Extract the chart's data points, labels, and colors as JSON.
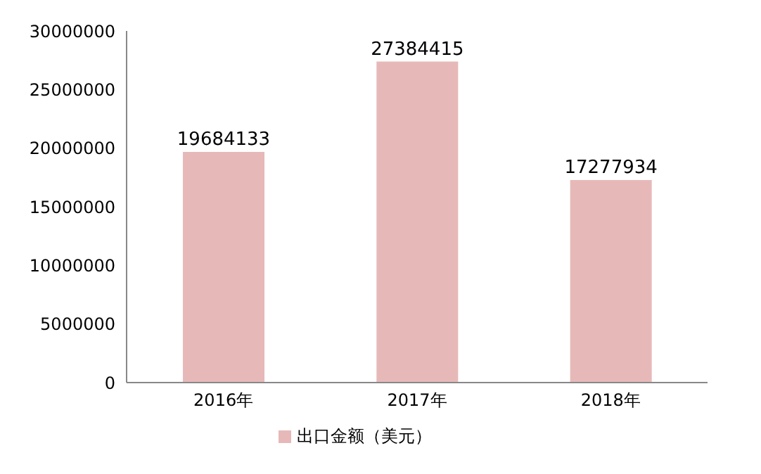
{
  "chart_data": {
    "type": "bar",
    "categories": [
      "2016年",
      "2017年",
      "2018年"
    ],
    "series": [
      {
        "name": "出口金额（美元）",
        "color": "#e6b9b8",
        "values": [
          19684133,
          27384415,
          17277934
        ]
      }
    ],
    "ylim": [
      0,
      30000000
    ],
    "yticks": [
      0,
      5000000,
      10000000,
      15000000,
      20000000,
      25000000,
      30000000
    ],
    "data_labels": true,
    "grid": false,
    "legend": "bottom"
  }
}
